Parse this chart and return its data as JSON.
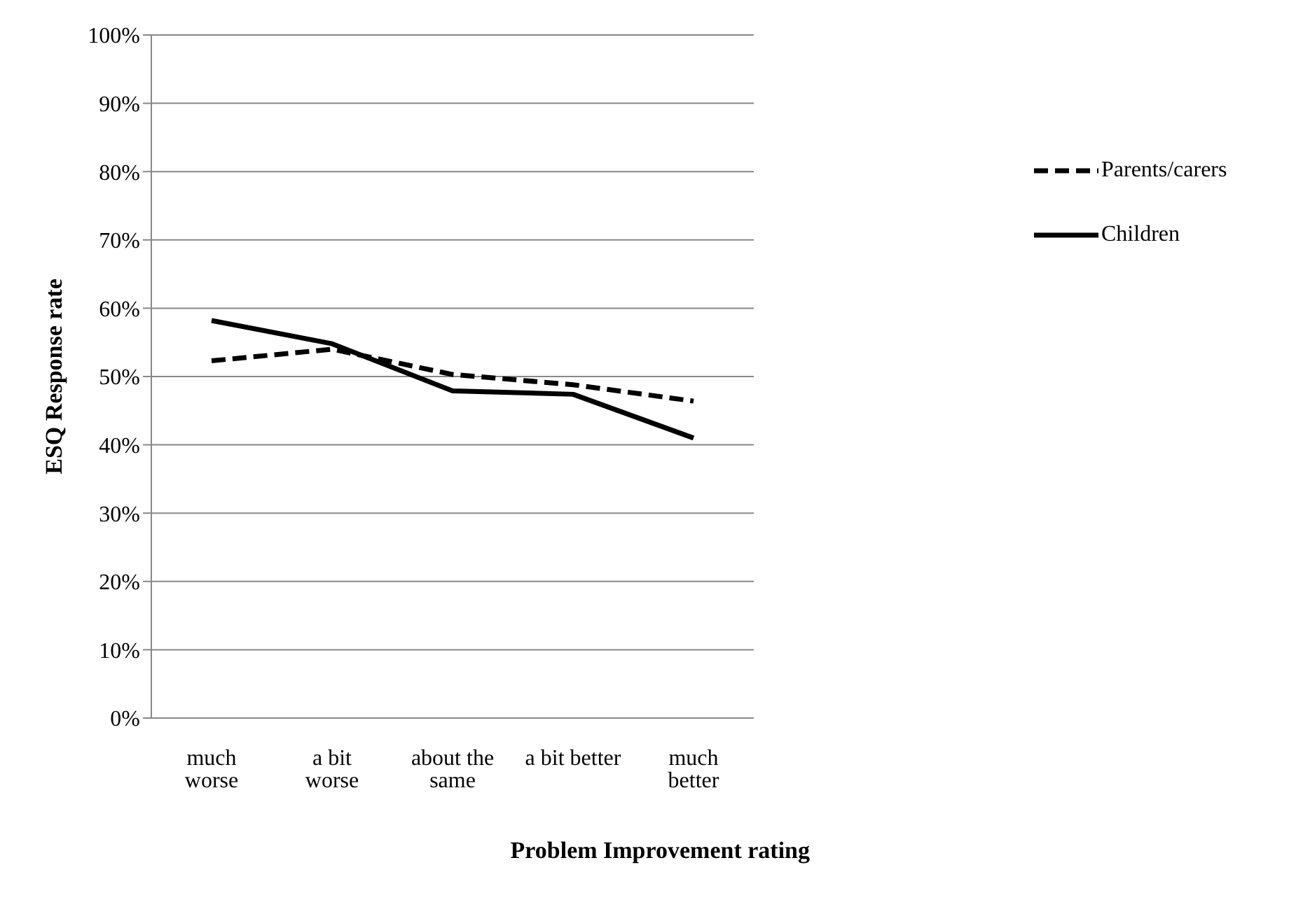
{
  "chart_data": {
    "type": "line",
    "xlabel": "Problem Improvement rating",
    "ylabel": "ESQ Response rate",
    "categories": [
      "much worse",
      "a bit worse",
      "about the same",
      "a bit better",
      "much better"
    ],
    "series": [
      {
        "name": "Parents/carers",
        "color": "#000000",
        "line_style": "dashed",
        "values": [
          52.3,
          54.0,
          50.3,
          48.8,
          46.4
        ]
      },
      {
        "name": "Children",
        "color": "#000000",
        "line_style": "solid",
        "values": [
          58.2,
          54.8,
          47.9,
          47.4,
          41.0
        ]
      }
    ],
    "ylim": [
      0,
      100
    ],
    "yticks": [
      {
        "value": 0,
        "label": "0%"
      },
      {
        "value": 10,
        "label": "10%"
      },
      {
        "value": 20,
        "label": "20%"
      },
      {
        "value": 30,
        "label": "30%"
      },
      {
        "value": 40,
        "label": "40%"
      },
      {
        "value": 50,
        "label": "50%"
      },
      {
        "value": 60,
        "label": "60%"
      },
      {
        "value": 70,
        "label": "70%"
      },
      {
        "value": 80,
        "label": "80%"
      },
      {
        "value": 90,
        "label": "90%"
      },
      {
        "value": 100,
        "label": "100%"
      }
    ],
    "grid": "y",
    "legend": "right",
    "marker": "none"
  }
}
